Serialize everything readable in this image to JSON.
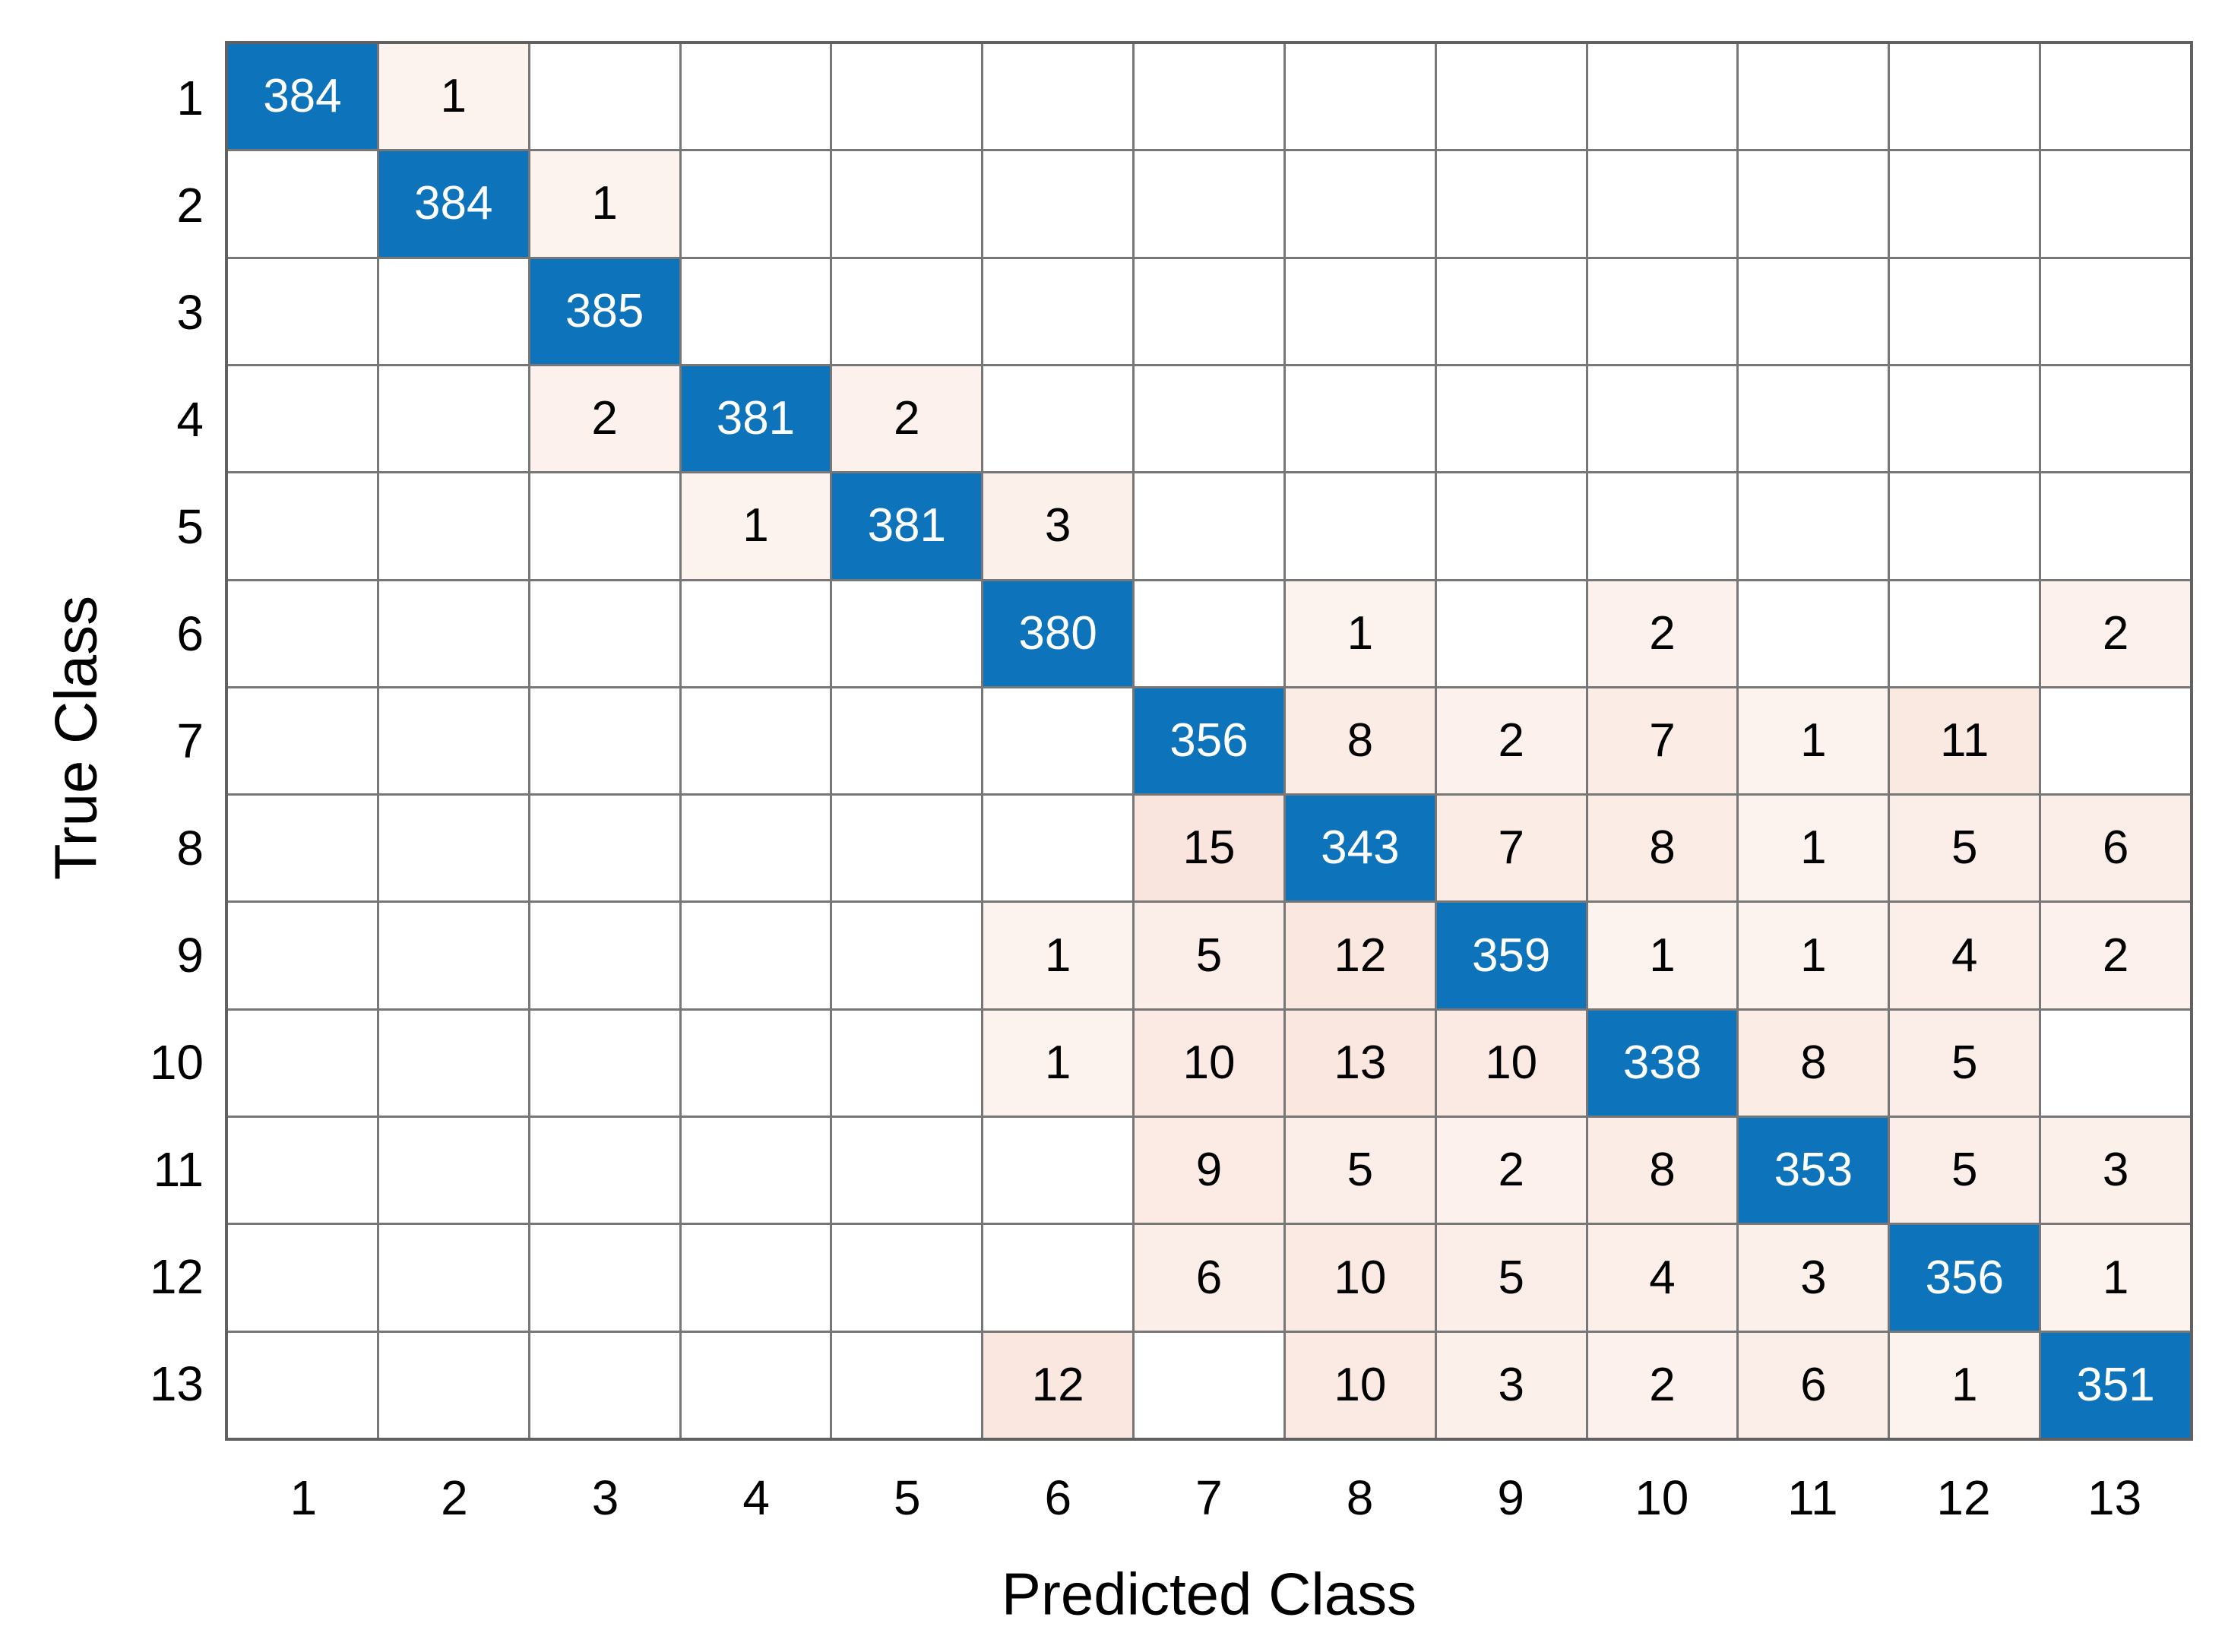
{
  "chart_data": {
    "type": "heatmap",
    "subtype": "confusion-matrix",
    "title": "",
    "xlabel": "Predicted Class",
    "ylabel": "True Class",
    "x_tick_labels": [
      "1",
      "2",
      "3",
      "4",
      "5",
      "6",
      "7",
      "8",
      "9",
      "10",
      "11",
      "12",
      "13"
    ],
    "y_tick_labels": [
      "1",
      "2",
      "3",
      "4",
      "5",
      "6",
      "7",
      "8",
      "9",
      "10",
      "11",
      "12",
      "13"
    ],
    "matrix": [
      [
        384,
        1,
        0,
        0,
        0,
        0,
        0,
        0,
        0,
        0,
        0,
        0,
        0
      ],
      [
        0,
        384,
        1,
        0,
        0,
        0,
        0,
        0,
        0,
        0,
        0,
        0,
        0
      ],
      [
        0,
        0,
        385,
        0,
        0,
        0,
        0,
        0,
        0,
        0,
        0,
        0,
        0
      ],
      [
        0,
        0,
        2,
        381,
        2,
        0,
        0,
        0,
        0,
        0,
        0,
        0,
        0
      ],
      [
        0,
        0,
        0,
        1,
        381,
        3,
        0,
        0,
        0,
        0,
        0,
        0,
        0
      ],
      [
        0,
        0,
        0,
        0,
        0,
        380,
        0,
        1,
        0,
        2,
        0,
        0,
        2
      ],
      [
        0,
        0,
        0,
        0,
        0,
        0,
        356,
        8,
        2,
        7,
        1,
        11,
        0
      ],
      [
        0,
        0,
        0,
        0,
        0,
        0,
        15,
        343,
        7,
        8,
        1,
        5,
        6
      ],
      [
        0,
        0,
        0,
        0,
        0,
        1,
        5,
        12,
        359,
        1,
        1,
        4,
        2
      ],
      [
        0,
        0,
        0,
        0,
        0,
        1,
        10,
        13,
        10,
        338,
        8,
        5,
        0
      ],
      [
        0,
        0,
        0,
        0,
        0,
        0,
        9,
        5,
        2,
        8,
        353,
        5,
        3
      ],
      [
        0,
        0,
        0,
        0,
        0,
        0,
        6,
        10,
        5,
        4,
        3,
        356,
        1
      ],
      [
        0,
        0,
        0,
        0,
        0,
        12,
        0,
        10,
        3,
        2,
        6,
        1,
        351
      ]
    ],
    "max_off_diagonal_value": 15,
    "colors": {
      "diagonal": "#0d73ba",
      "diagonal_text": "#ffffff",
      "off_diagonal_base_rgb": [
        217,
        83,
        25
      ],
      "off_diagonal_text": "#000000",
      "empty_cell": "#ffffff",
      "grid_line": "#777777",
      "outer_border": "#616161"
    },
    "layout": {
      "grid_on": true,
      "x_range": "classes 1-13",
      "y_range": "classes 1-13"
    }
  }
}
